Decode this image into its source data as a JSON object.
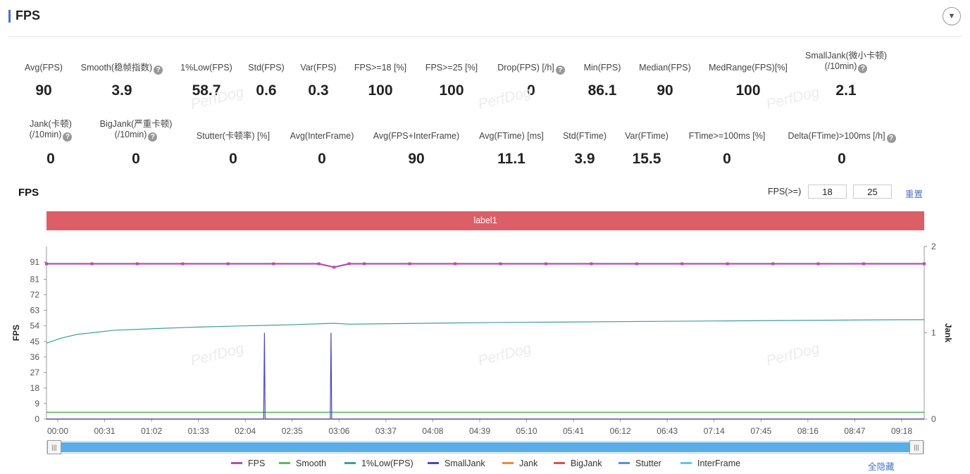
{
  "header": {
    "title": "FPS",
    "collapse_icon": "chevron-down-icon"
  },
  "stats_row1": [
    {
      "label": "Avg(FPS)",
      "value": "90"
    },
    {
      "label": "Smooth(稳帧指数)",
      "value": "3.9",
      "help": true
    },
    {
      "label": "1%Low(FPS)",
      "value": "58.7"
    },
    {
      "label": "Std(FPS)",
      "value": "0.6"
    },
    {
      "label": "Var(FPS)",
      "value": "0.3"
    },
    {
      "label": "FPS>=18 [%]",
      "value": "100"
    },
    {
      "label": "FPS>=25 [%]",
      "value": "100"
    },
    {
      "label": "Drop(FPS) [/h]",
      "value": "0",
      "help": true
    },
    {
      "label": "Min(FPS)",
      "value": "86.1"
    },
    {
      "label": "Median(FPS)",
      "value": "90"
    },
    {
      "label": "MedRange(FPS)[%]",
      "value": "100"
    },
    {
      "label": "SmallJank(微小卡顿)",
      "label2": "(/10min)",
      "value": "2.1",
      "help": true
    }
  ],
  "stats_row2": [
    {
      "label": "Jank(卡顿)",
      "label2": "(/10min)",
      "value": "0",
      "help": true
    },
    {
      "label": "BigJank(严重卡顿)",
      "label2": "(/10min)",
      "value": "0",
      "help": true
    },
    {
      "label": "Stutter(卡顿率) [%]",
      "value": "0"
    },
    {
      "label": "Avg(InterFrame)",
      "value": "0"
    },
    {
      "label": "Avg(FPS+InterFrame)",
      "value": "90"
    },
    {
      "label": "Avg(FTime) [ms]",
      "value": "11.1"
    },
    {
      "label": "Std(FTime)",
      "value": "3.9"
    },
    {
      "label": "Var(FTime)",
      "value": "15.5"
    },
    {
      "label": "FTime>=100ms [%]",
      "value": "0"
    },
    {
      "label": "Delta(FTime)>100ms [/h]",
      "value": "0",
      "help": true
    }
  ],
  "chart_controls": {
    "title": "FPS",
    "threshold_label": "FPS(>=)",
    "threshold1": "18",
    "threshold2": "25",
    "reset_label": "重置",
    "hide_all_label": "全隐藏"
  },
  "label_band": "label1",
  "watermark": "PerfDog",
  "colors": {
    "accent": "#4a6fd8",
    "label_band": "#dc5f68",
    "fps": "#b44eb4",
    "smooth": "#5cb85c",
    "low1": "#3d9ea1",
    "smalljank": "#4a4ab8",
    "jank": "#f0883c",
    "bigjank": "#d9534f",
    "stutter": "#5a8fd8",
    "interframe": "#5ac8e6",
    "link": "#4a73c8",
    "slider": "#5aaee6"
  },
  "chart_data": {
    "type": "line",
    "xlabel": "",
    "ylabel": "FPS",
    "y2label": "Jank",
    "x_ticks": [
      "00:00",
      "00:31",
      "01:02",
      "01:33",
      "02:04",
      "02:35",
      "03:06",
      "03:37",
      "04:08",
      "04:39",
      "05:10",
      "05:41",
      "06:12",
      "06:43",
      "07:14",
      "07:45",
      "08:16",
      "08:47",
      "09:18"
    ],
    "y_ticks": [
      0,
      9,
      18,
      27,
      36,
      45,
      54,
      63,
      72,
      81,
      91
    ],
    "y_range": [
      0,
      100
    ],
    "y2_ticks": [
      0,
      1,
      2
    ],
    "y2_range": [
      0,
      2
    ],
    "duration_s": 580,
    "legend": [
      "FPS",
      "Smooth",
      "1%Low(FPS)",
      "SmallJank",
      "Jank",
      "BigJank",
      "Stutter",
      "InterFrame"
    ],
    "legend_placement": "bottom",
    "series": [
      {
        "name": "FPS",
        "axis": "left",
        "x": [
          0,
          30,
          60,
          90,
          120,
          150,
          180,
          190,
          200,
          210,
          240,
          270,
          300,
          330,
          360,
          390,
          420,
          450,
          480,
          510,
          540,
          580
        ],
        "y": [
          90,
          90,
          90,
          90,
          90,
          90,
          90,
          88,
          90,
          90,
          90,
          90,
          90,
          90,
          90,
          90,
          90,
          90,
          90,
          90,
          90,
          90
        ]
      },
      {
        "name": "1%Low(FPS)",
        "axis": "left",
        "x": [
          0,
          10,
          20,
          30,
          45,
          60,
          80,
          100,
          130,
          160,
          190,
          200,
          250,
          300,
          350,
          400,
          450,
          500,
          550,
          580
        ],
        "y": [
          44,
          47,
          49,
          50,
          51.5,
          52,
          52.7,
          53.3,
          54,
          54.6,
          55.5,
          55,
          55.5,
          56,
          56.3,
          56.6,
          56.9,
          57.2,
          57.5,
          57.6
        ]
      },
      {
        "name": "Smooth",
        "axis": "left",
        "x": [
          0,
          580
        ],
        "y": [
          3.9,
          3.9
        ]
      },
      {
        "name": "SmallJank",
        "axis": "right",
        "x": [
          0,
          143,
          143.5,
          144,
          144.5,
          145,
          187,
          187.5,
          188,
          188.5,
          189,
          580
        ],
        "y": [
          0,
          0,
          0,
          1,
          0,
          0,
          0,
          0,
          1,
          0,
          0,
          0
        ]
      },
      {
        "name": "Jank",
        "axis": "right",
        "x": [
          0,
          580
        ],
        "y": [
          0,
          0
        ]
      },
      {
        "name": "BigJank",
        "axis": "right",
        "x": [
          0,
          580
        ],
        "y": [
          0,
          0
        ]
      },
      {
        "name": "Stutter",
        "axis": "left",
        "x": [
          0,
          580
        ],
        "y": [
          0,
          0
        ]
      },
      {
        "name": "InterFrame",
        "axis": "left",
        "x": [
          0,
          580
        ],
        "y": [
          0,
          0
        ]
      }
    ]
  }
}
